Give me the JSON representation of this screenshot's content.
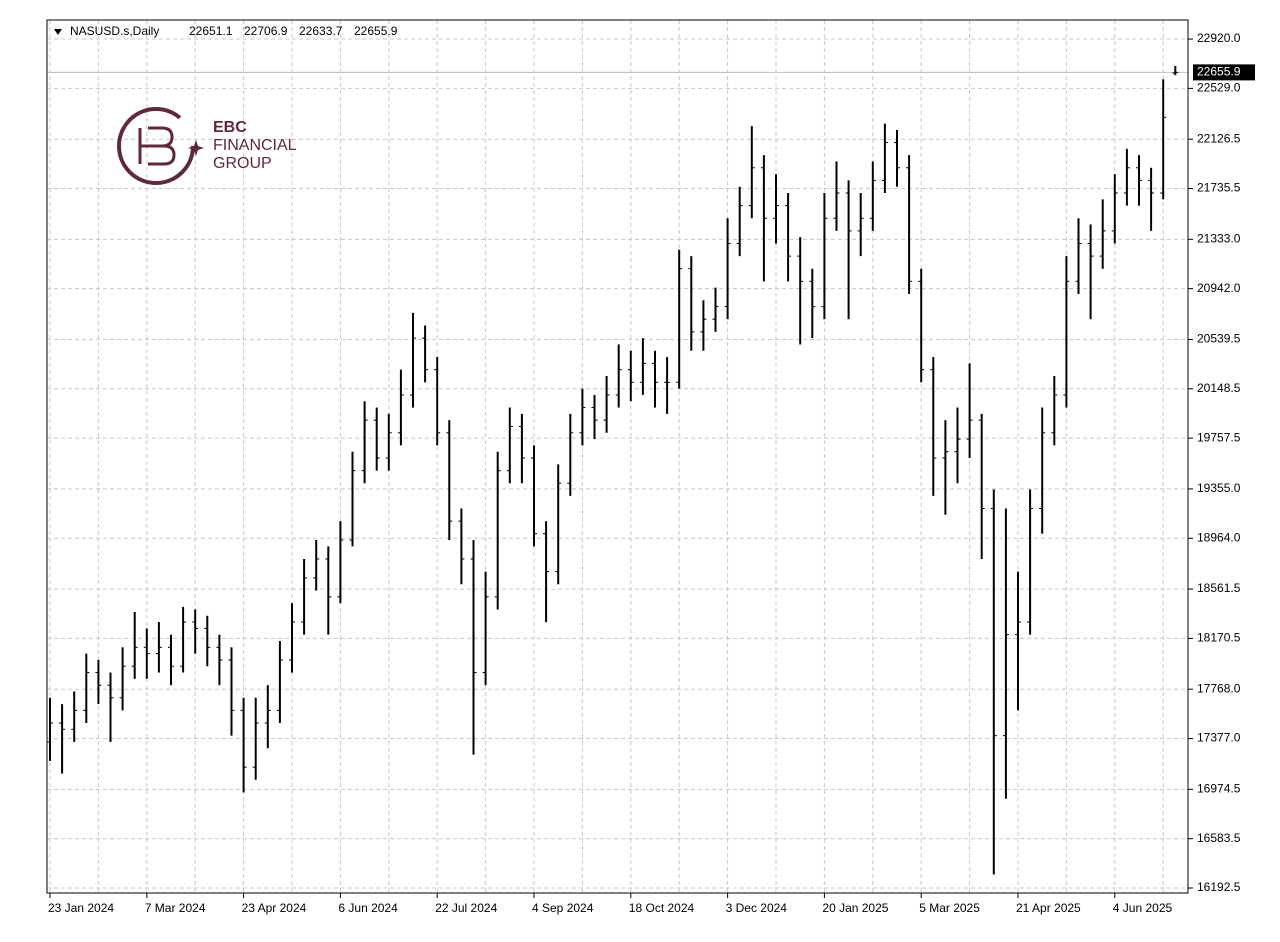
{
  "chart_data": {
    "type": "ohlc",
    "title": "NASUSD.s,Daily",
    "logo": [
      "EBC",
      "FINANCIAL",
      "GROUP"
    ],
    "color": "#000000",
    "grid": true,
    "categories": [
      "23 Jan 2024",
      null,
      null,
      null,
      null,
      null,
      null,
      null,
      "7 Mar 2024",
      null,
      null,
      null,
      null,
      null,
      null,
      null,
      "23 Apr 2024",
      null,
      null,
      null,
      null,
      null,
      null,
      null,
      "6 Jun 2024",
      null,
      null,
      null,
      null,
      null,
      null,
      null,
      "22 Jul 2024",
      null,
      null,
      null,
      null,
      null,
      null,
      null,
      "4 Sep 2024",
      null,
      null,
      null,
      null,
      null,
      null,
      null,
      "18 Oct 2024",
      null,
      null,
      null,
      null,
      null,
      null,
      null,
      "3 Dec 2024",
      null,
      null,
      null,
      null,
      null,
      null,
      null,
      "20 Jan 2025",
      null,
      null,
      null,
      null,
      null,
      null,
      null,
      "5 Mar 2025",
      null,
      null,
      null,
      null,
      null,
      null,
      null,
      "21 Apr 2025",
      null,
      null,
      null,
      null,
      null,
      null,
      null,
      "4 Jun 2025",
      null,
      null,
      null,
      null,
      null
    ],
    "open": [
      17350,
      17500,
      17450,
      17600,
      17900,
      17800,
      17700,
      17950,
      18100,
      18050,
      18100,
      17950,
      18300,
      18250,
      18100,
      18000,
      17600,
      17150,
      17500,
      17600,
      18000,
      18300,
      18650,
      18800,
      18500,
      18950,
      19500,
      19900,
      19600,
      19800,
      20100,
      20550,
      20300,
      19800,
      19100,
      18800,
      17900,
      18500,
      19500,
      19850,
      19600,
      19000,
      18700,
      19400,
      19800,
      20000,
      19900,
      20100,
      20300,
      20200,
      20350,
      20200,
      20200,
      21100,
      20600,
      20700,
      20800,
      21300,
      21600,
      21900,
      21500,
      21600,
      21200,
      21000,
      20800,
      21500,
      21700,
      21400,
      21500,
      21800,
      22100,
      21900,
      21000,
      20300,
      19600,
      19650,
      19750,
      19900,
      19200,
      17400,
      18200,
      18300,
      19200,
      19800,
      20100,
      21000,
      21300,
      21200,
      21400,
      21700,
      21900,
      21800,
      21700,
      22651.1
    ],
    "high": [
      17700,
      17650,
      17750,
      18050,
      18000,
      17900,
      18100,
      18380,
      18250,
      18300,
      18200,
      18420,
      18400,
      18350,
      18200,
      18100,
      17700,
      17700,
      17800,
      18150,
      18450,
      18800,
      18950,
      18900,
      19100,
      19650,
      20050,
      20000,
      19950,
      20300,
      20750,
      20650,
      20400,
      19900,
      19200,
      18950,
      18700,
      19650,
      20000,
      19950,
      19700,
      19100,
      19550,
      19950,
      20150,
      20100,
      20250,
      20500,
      20450,
      20550,
      20450,
      20400,
      21250,
      21200,
      20850,
      20950,
      21500,
      21750,
      22230,
      22000,
      21850,
      21700,
      21350,
      21100,
      21700,
      21950,
      21800,
      21700,
      21950,
      22250,
      22200,
      22000,
      21100,
      20400,
      19900,
      20000,
      20350,
      19950,
      19350,
      19200,
      18700,
      19350,
      20000,
      20250,
      21200,
      21500,
      21450,
      21650,
      21850,
      22050,
      22000,
      21900,
      22600,
      22706.9
    ],
    "low": [
      17200,
      17100,
      17350,
      17500,
      17650,
      17350,
      17600,
      17850,
      17850,
      17900,
      17800,
      17900,
      18050,
      17950,
      17800,
      17400,
      16950,
      17050,
      17300,
      17500,
      17900,
      18200,
      18550,
      18200,
      18450,
      18900,
      19400,
      19500,
      19500,
      19700,
      20000,
      20200,
      19700,
      18950,
      18600,
      17250,
      17800,
      18400,
      19400,
      19400,
      18900,
      18300,
      18600,
      19300,
      19700,
      19750,
      19800,
      20000,
      20050,
      20100,
      20000,
      19950,
      20150,
      20450,
      20450,
      20600,
      20700,
      21200,
      21500,
      21000,
      21300,
      21000,
      20500,
      20550,
      20700,
      21400,
      20700,
      21200,
      21400,
      21700,
      21750,
      20900,
      20200,
      19300,
      19150,
      19400,
      19600,
      18800,
      16300,
      16900,
      17600,
      18200,
      19000,
      19700,
      20000,
      20900,
      20700,
      21100,
      21300,
      21600,
      21600,
      21400,
      21650,
      22633.7
    ],
    "close": [
      17500,
      17450,
      17600,
      17900,
      17800,
      17700,
      17950,
      18100,
      18050,
      18100,
      17950,
      18300,
      18250,
      18100,
      18000,
      17600,
      17150,
      17500,
      17600,
      18000,
      18300,
      18650,
      18800,
      18500,
      18950,
      19500,
      19900,
      19600,
      19800,
      20100,
      20550,
      20300,
      19800,
      19100,
      18800,
      17900,
      18500,
      19500,
      19850,
      19600,
      19000,
      18700,
      19400,
      19800,
      20000,
      19900,
      20100,
      20300,
      20200,
      20350,
      20200,
      20200,
      21100,
      20600,
      20700,
      20800,
      21300,
      21600,
      21900,
      21500,
      21600,
      21200,
      21000,
      20800,
      21500,
      21700,
      21400,
      21500,
      21800,
      22100,
      21900,
      21000,
      20300,
      19600,
      19650,
      19750,
      19900,
      19200,
      17400,
      18200,
      18300,
      19200,
      19800,
      20100,
      21000,
      21300,
      21200,
      21400,
      21700,
      21900,
      21800,
      21700,
      22300,
      22655.9
    ],
    "ylim": [
      16153,
      23071
    ],
    "yticks": [
      16192.5,
      16583.5,
      16974.5,
      {
        "value": 17377,
        "label": "17377.0"
      },
      {
        "value": 17768,
        "label": "17768.0"
      },
      18170.5,
      18561.5,
      {
        "value": 18964,
        "label": "18964.0"
      },
      {
        "value": 19355,
        "label": "19355.0"
      },
      19757.5,
      20148.5,
      20539.5,
      {
        "value": 20942,
        "label": "20942.0"
      },
      {
        "value": 21333,
        "label": "21333.0"
      },
      21735.5,
      22126.5,
      {
        "value": 22529,
        "label": "22529.0"
      },
      {
        "value": 22920,
        "label": "22920.0"
      }
    ]
  }
}
